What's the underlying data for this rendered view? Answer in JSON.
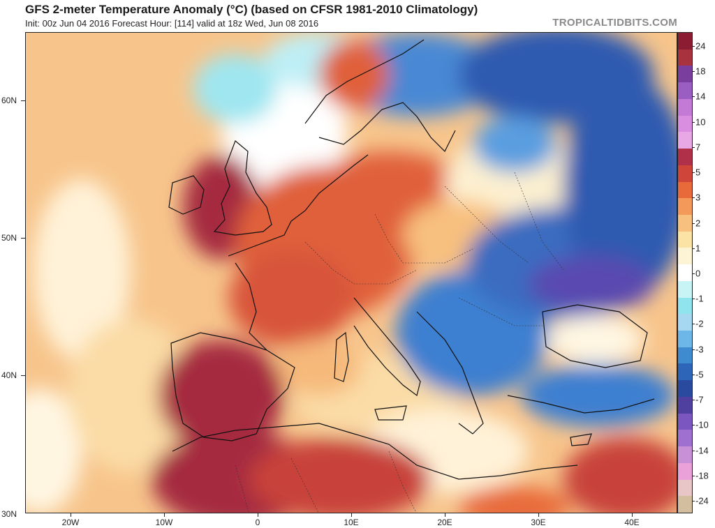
{
  "header": {
    "title": "GFS 2-meter Temperature Anomaly (°C) (based on CFSR 1981-2010 Climatology)",
    "subtitle": "Init: 00z Jun 04 2016   Forecast Hour: [114]   valid at 18z Wed, Jun 08 2016",
    "brand": "TROPICALTIDBITS.COM"
  },
  "axes": {
    "lat_labels": [
      "60N",
      "50N",
      "40N",
      "30N"
    ],
    "lon_labels": [
      "20W",
      "10W",
      "0",
      "10E",
      "20E",
      "30E",
      "40E"
    ]
  },
  "colorbar": {
    "labels": [
      "24",
      "18",
      "14",
      "10",
      "7",
      "5",
      "3",
      "2",
      "1",
      "0",
      "-1",
      "-2",
      "-3",
      "-5",
      "-7",
      "-10",
      "-14",
      "-18",
      "-24"
    ],
    "colors": [
      "#8c1c32",
      "#a8333f",
      "#7a3f9e",
      "#9a5ec2",
      "#c27ad6",
      "#d98ee0",
      "#e8a8e6",
      "#b0304a",
      "#d0453a",
      "#e86a3a",
      "#f39a5a",
      "#f8c07e",
      "#fbe3a6",
      "#fdf4d6",
      "#ffffff",
      "#c8f4f6",
      "#8fe4ee",
      "#a6d8f2",
      "#6db6e8",
      "#3e8bd0",
      "#2d66b8",
      "#2a4aa0",
      "#4f3f9e",
      "#7b55c0",
      "#a070d0",
      "#c890d6",
      "#eaa0d8",
      "#e8c6c8",
      "#d4bea0"
    ]
  },
  "map": {
    "colors": {
      "ocean_warm": "#f6b97a",
      "ocean_mild": "#fbdca6",
      "ocean_neutral": "#fff6e2",
      "cool_cyan": "#9fe6f0",
      "iberia_hot": "#a52a40",
      "west_europe_warm": "#e0603a",
      "east_europe_cold": "#3d7ed0",
      "russia_cold": "#2d5ab0",
      "deep_cold": "#5a48b0",
      "africa_hot": "#c8423a",
      "boundary": "#111111"
    }
  }
}
